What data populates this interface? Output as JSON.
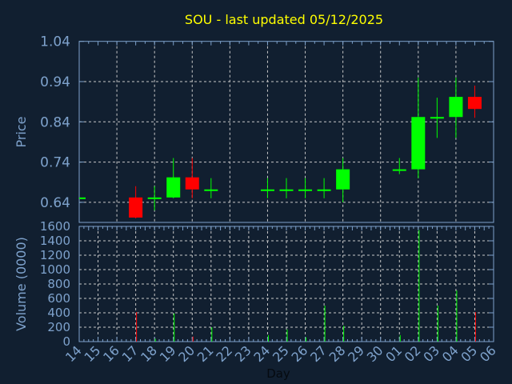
{
  "chart_data": [
    {
      "type": "candlestick",
      "title": "SOU - last updated 05/12/2025",
      "xlabel": "Day",
      "ylabel": "Price",
      "ylim": [
        0.59,
        1.04
      ],
      "yticks": [
        "1.04",
        "0.94",
        "0.84",
        "0.74",
        "0.64"
      ],
      "grid": true,
      "x_tick_labels": [
        "14",
        "15",
        "16",
        "17",
        "18",
        "19",
        "20",
        "21",
        "22",
        "23",
        "24",
        "25",
        "26",
        "27",
        "28",
        "29",
        "30",
        "01",
        "02",
        "03",
        "04",
        "05",
        "06"
      ],
      "candles": [
        {
          "day": "14",
          "open": 0.65,
          "high": 0.65,
          "low": 0.65,
          "close": 0.65
        },
        {
          "day": "17",
          "open": 0.65,
          "high": 0.68,
          "low": 0.6,
          "close": 0.6
        },
        {
          "day": "18",
          "open": 0.65,
          "high": 0.68,
          "low": 0.62,
          "close": 0.65
        },
        {
          "day": "19",
          "open": 0.65,
          "high": 0.75,
          "low": 0.65,
          "close": 0.7
        },
        {
          "day": "20",
          "open": 0.7,
          "high": 0.75,
          "low": 0.65,
          "close": 0.67
        },
        {
          "day": "21",
          "open": 0.67,
          "high": 0.7,
          "low": 0.65,
          "close": 0.67
        },
        {
          "day": "24",
          "open": 0.67,
          "high": 0.7,
          "low": 0.65,
          "close": 0.67
        },
        {
          "day": "25",
          "open": 0.67,
          "high": 0.7,
          "low": 0.65,
          "close": 0.67
        },
        {
          "day": "26",
          "open": 0.67,
          "high": 0.7,
          "low": 0.65,
          "close": 0.67
        },
        {
          "day": "27",
          "open": 0.67,
          "high": 0.7,
          "low": 0.65,
          "close": 0.67
        },
        {
          "day": "28",
          "open": 0.67,
          "high": 0.75,
          "low": 0.64,
          "close": 0.72
        },
        {
          "day": "01",
          "open": 0.72,
          "high": 0.75,
          "low": 0.71,
          "close": 0.72
        },
        {
          "day": "02",
          "open": 0.72,
          "high": 0.95,
          "low": 0.7,
          "close": 0.85
        },
        {
          "day": "03",
          "open": 0.85,
          "high": 0.9,
          "low": 0.8,
          "close": 0.85
        },
        {
          "day": "04",
          "open": 0.85,
          "high": 0.95,
          "low": 0.8,
          "close": 0.9
        },
        {
          "day": "05",
          "open": 0.9,
          "high": 0.93,
          "low": 0.85,
          "close": 0.87
        }
      ],
      "colors": {
        "up": "#00ff00",
        "down": "#ff0000",
        "title": "#ffff00",
        "axis": "#7ea2cc",
        "grid": "#c8c8c8",
        "background": "#111f30"
      }
    },
    {
      "type": "bar",
      "ylabel": "Volume (0000)",
      "ylim": [
        0,
        1600
      ],
      "yticks": [
        "1600",
        "1400",
        "1200",
        "1000",
        "800",
        "600",
        "400",
        "200",
        "0"
      ],
      "grid": true,
      "bars": [
        {
          "day": "17",
          "value": 410,
          "direction": "down"
        },
        {
          "day": "18",
          "value": 40,
          "direction": "up"
        },
        {
          "day": "19",
          "value": 390,
          "direction": "up"
        },
        {
          "day": "20",
          "value": 70,
          "direction": "down"
        },
        {
          "day": "21",
          "value": 200,
          "direction": "up"
        },
        {
          "day": "24",
          "value": 90,
          "direction": "up"
        },
        {
          "day": "25",
          "value": 170,
          "direction": "up"
        },
        {
          "day": "26",
          "value": 60,
          "direction": "up"
        },
        {
          "day": "27",
          "value": 500,
          "direction": "up"
        },
        {
          "day": "28",
          "value": 220,
          "direction": "up"
        },
        {
          "day": "01",
          "value": 90,
          "direction": "up"
        },
        {
          "day": "02",
          "value": 1550,
          "direction": "up"
        },
        {
          "day": "03",
          "value": 500,
          "direction": "up"
        },
        {
          "day": "04",
          "value": 710,
          "direction": "up"
        },
        {
          "day": "05",
          "value": 410,
          "direction": "down"
        }
      ]
    }
  ]
}
